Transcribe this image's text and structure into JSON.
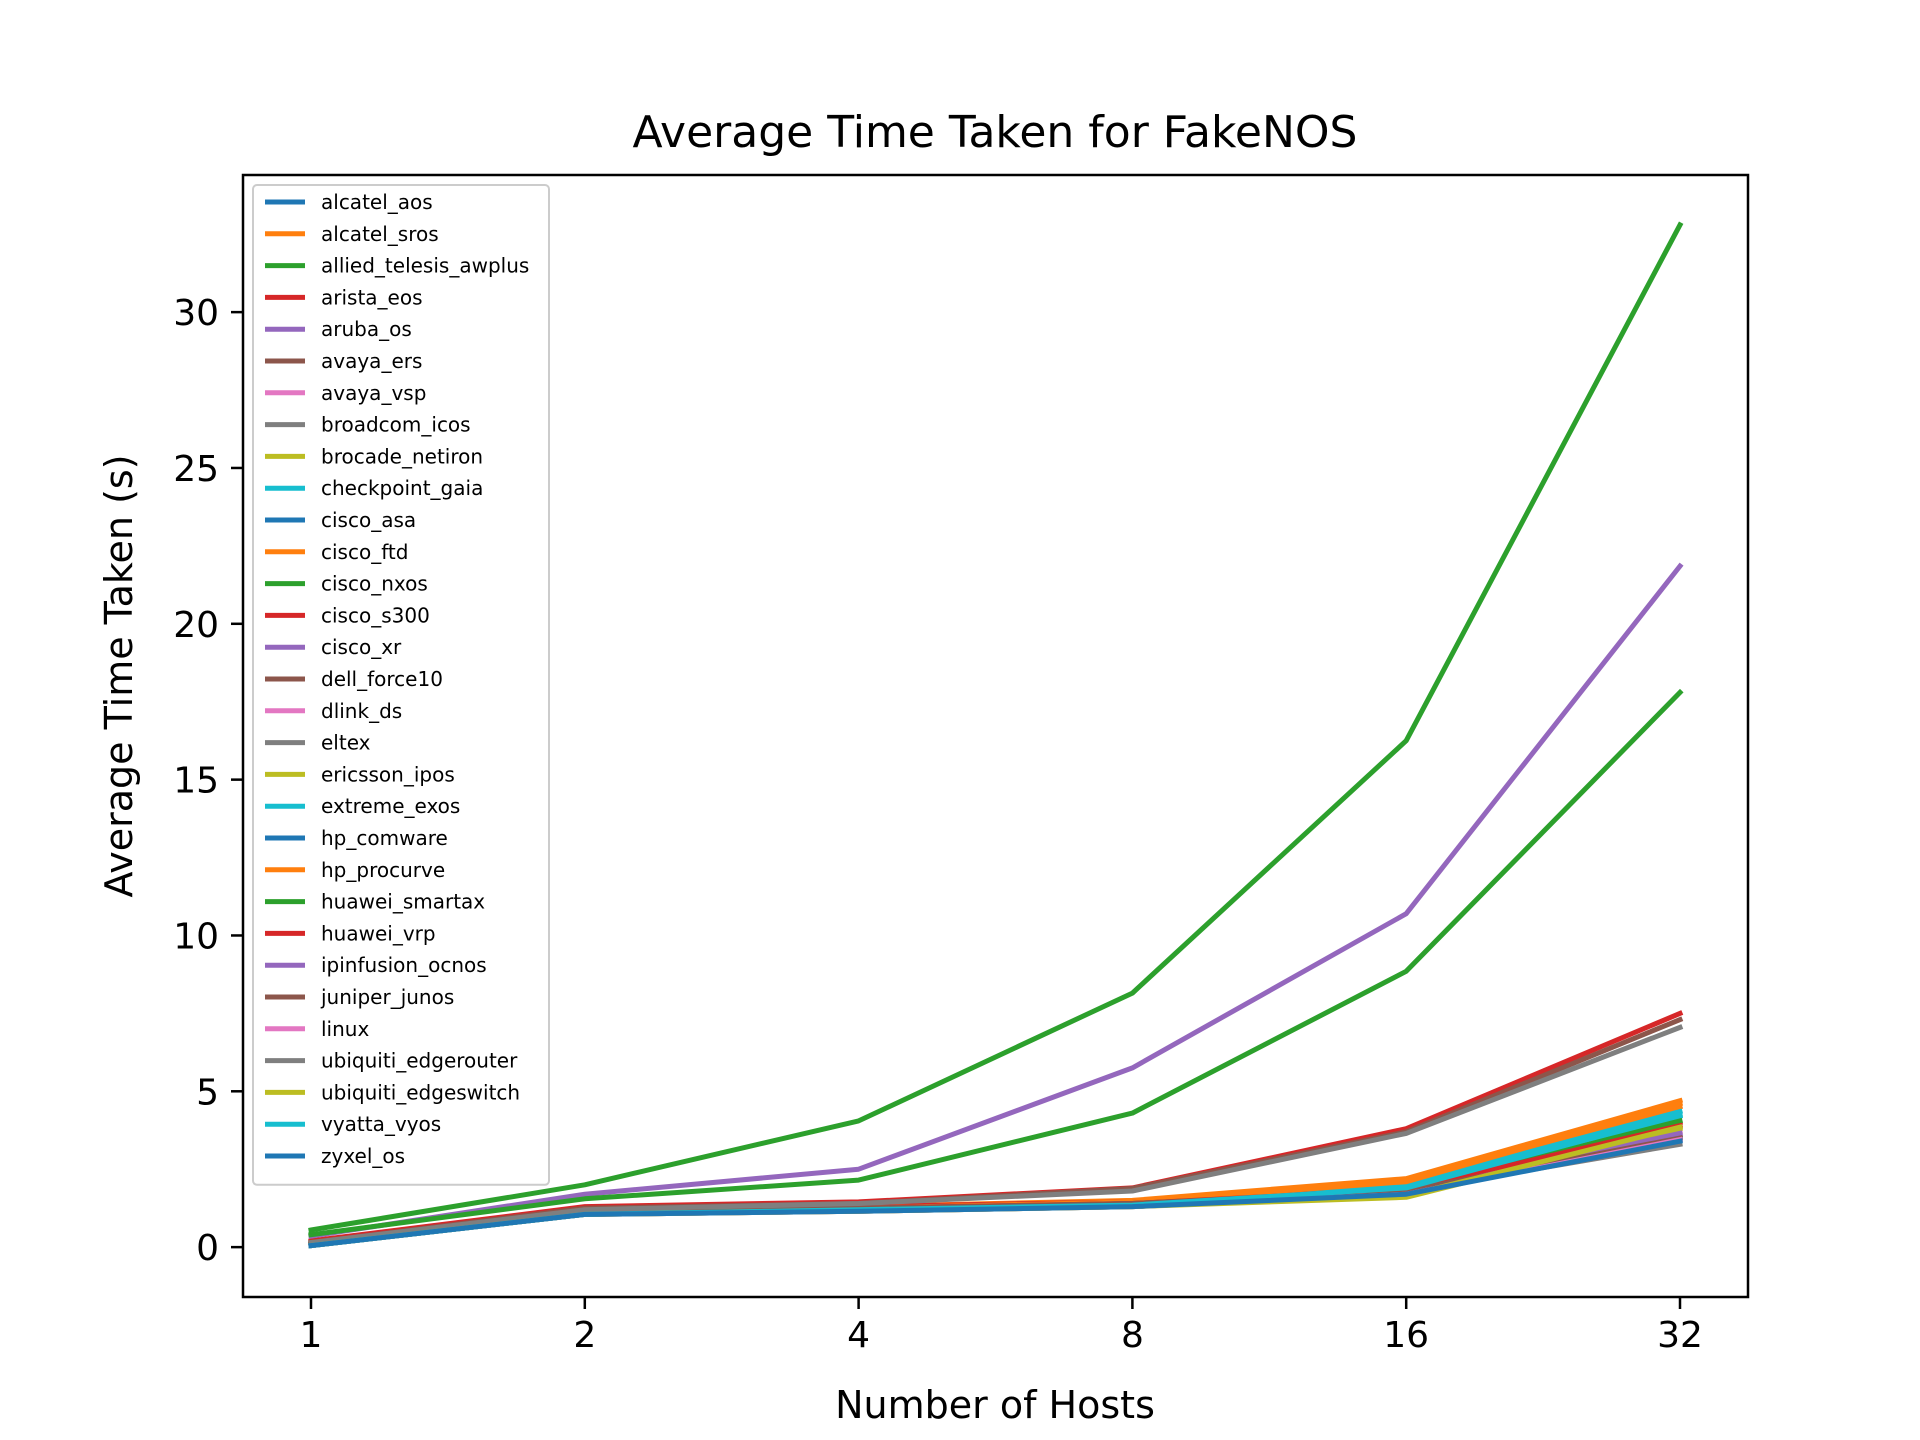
{
  "chart_data": {
    "type": "line",
    "title": "Average Time Taken for FakeNOS",
    "xlabel": "Number of Hosts",
    "ylabel": "Average Time Taken (s)",
    "x": [
      "1",
      "2",
      "4",
      "8",
      "16",
      "32"
    ],
    "ylim": [
      -1.6,
      34.4
    ],
    "yticks": [
      "0",
      "5",
      "10",
      "15",
      "20",
      "25",
      "30"
    ],
    "legend_position": "upper-left",
    "grid": false,
    "series": [
      {
        "name": "alcatel_aos",
        "color": "#1f77b4",
        "values": [
          0.05,
          1.1,
          1.2,
          1.35,
          1.75,
          3.5
        ]
      },
      {
        "name": "alcatel_sros",
        "color": "#ff7f0e",
        "values": [
          0.1,
          1.15,
          1.25,
          1.45,
          2.1,
          4.5
        ]
      },
      {
        "name": "allied_telesis_awplus",
        "color": "#2ca02c",
        "values": [
          0.55,
          2.0,
          4.05,
          8.15,
          16.25,
          32.8
        ]
      },
      {
        "name": "arista_eos",
        "color": "#d62728",
        "values": [
          0.2,
          1.3,
          1.45,
          1.9,
          3.8,
          7.5
        ]
      },
      {
        "name": "aruba_os",
        "color": "#9467bd",
        "values": [
          0.35,
          1.7,
          2.5,
          5.75,
          10.7,
          21.85
        ]
      },
      {
        "name": "avaya_ers",
        "color": "#8c564b",
        "values": [
          0.15,
          1.25,
          1.4,
          1.88,
          3.7,
          7.3
        ]
      },
      {
        "name": "avaya_vsp",
        "color": "#e377c2",
        "values": [
          0.05,
          1.05,
          1.2,
          1.35,
          1.7,
          3.6
        ]
      },
      {
        "name": "broadcom_icos",
        "color": "#7f7f7f",
        "values": [
          0.1,
          1.1,
          1.25,
          1.4,
          1.8,
          3.5
        ]
      },
      {
        "name": "brocade_netiron",
        "color": "#bcbd22",
        "values": [
          0.1,
          1.1,
          1.2,
          1.35,
          1.75,
          3.9
        ]
      },
      {
        "name": "checkpoint_gaia",
        "color": "#17becf",
        "values": [
          0.05,
          1.1,
          1.25,
          1.45,
          2.0,
          4.35
        ]
      },
      {
        "name": "cisco_asa",
        "color": "#1f77b4",
        "values": [
          0.05,
          1.05,
          1.2,
          1.35,
          1.8,
          3.55
        ]
      },
      {
        "name": "cisco_ftd",
        "color": "#ff7f0e",
        "values": [
          0.1,
          1.2,
          1.3,
          1.5,
          2.2,
          4.7
        ]
      },
      {
        "name": "cisco_nxos",
        "color": "#2ca02c",
        "values": [
          0.4,
          1.55,
          2.15,
          4.3,
          8.85,
          17.8
        ]
      },
      {
        "name": "cisco_s300",
        "color": "#d62728",
        "values": [
          0.15,
          1.2,
          1.3,
          1.45,
          1.85,
          4.0
        ]
      },
      {
        "name": "cisco_xr",
        "color": "#9467bd",
        "values": [
          0.1,
          1.15,
          1.25,
          1.4,
          1.8,
          3.5
        ]
      },
      {
        "name": "dell_force10",
        "color": "#8c564b",
        "values": [
          0.1,
          1.1,
          1.2,
          1.35,
          1.75,
          3.6
        ]
      },
      {
        "name": "dlink_ds",
        "color": "#e377c2",
        "values": [
          0.05,
          1.1,
          1.2,
          1.35,
          1.7,
          3.7
        ]
      },
      {
        "name": "eltex",
        "color": "#7f7f7f",
        "values": [
          0.1,
          1.15,
          1.25,
          1.4,
          1.8,
          3.3
        ]
      },
      {
        "name": "ericsson_ipos",
        "color": "#bcbd22",
        "values": [
          0.05,
          1.05,
          1.15,
          1.3,
          1.6,
          3.8
        ]
      },
      {
        "name": "extreme_exos",
        "color": "#17becf",
        "values": [
          0.05,
          1.05,
          1.2,
          1.35,
          1.85,
          4.2
        ]
      },
      {
        "name": "hp_comware",
        "color": "#1f77b4",
        "values": [
          0.05,
          1.05,
          1.15,
          1.3,
          1.7,
          3.45
        ]
      },
      {
        "name": "hp_procurve",
        "color": "#ff7f0e",
        "values": [
          0.1,
          1.15,
          1.25,
          1.45,
          2.1,
          4.6
        ]
      },
      {
        "name": "huawei_smartax",
        "color": "#2ca02c",
        "values": [
          0.1,
          1.1,
          1.2,
          1.4,
          1.8,
          4.05
        ]
      },
      {
        "name": "huawei_vrp",
        "color": "#d62728",
        "values": [
          0.1,
          1.15,
          1.25,
          1.4,
          1.85,
          3.9
        ]
      },
      {
        "name": "ipinfusion_ocnos",
        "color": "#9467bd",
        "values": [
          0.05,
          1.1,
          1.2,
          1.35,
          1.75,
          3.65
        ]
      },
      {
        "name": "juniper_junos",
        "color": "#8c564b",
        "values": [
          0.1,
          1.15,
          1.25,
          1.4,
          1.8,
          3.5
        ]
      },
      {
        "name": "linux",
        "color": "#e377c2",
        "values": [
          0.05,
          1.05,
          1.15,
          1.3,
          1.7,
          3.45
        ]
      },
      {
        "name": "ubiquiti_edgerouter",
        "color": "#7f7f7f",
        "values": [
          0.15,
          1.2,
          1.4,
          1.8,
          3.65,
          7.05
        ]
      },
      {
        "name": "ubiquiti_edgeswitch",
        "color": "#bcbd22",
        "values": [
          0.05,
          1.05,
          1.15,
          1.3,
          1.65,
          3.85
        ]
      },
      {
        "name": "vyatta_vyos",
        "color": "#17becf",
        "values": [
          0.05,
          1.05,
          1.2,
          1.35,
          1.9,
          4.25
        ]
      },
      {
        "name": "zyxel_os",
        "color": "#1f77b4",
        "values": [
          0.05,
          1.05,
          1.15,
          1.3,
          1.7,
          3.4
        ]
      }
    ]
  }
}
